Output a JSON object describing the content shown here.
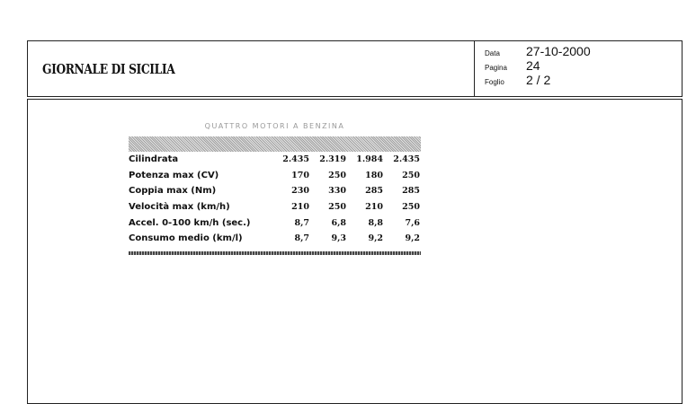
{
  "header": {
    "publication": "GIORNALE DI SICILIA"
  },
  "meta": [
    {
      "label": "Data",
      "value": "27-10-2000"
    },
    {
      "label": "Pagina",
      "value": "24"
    },
    {
      "label": "Foglio",
      "value": "2 / 2"
    }
  ],
  "table": {
    "title": "Quattro motori a benzina",
    "rows": [
      {
        "label": "Cilindrata",
        "values": [
          "2.435",
          "2.319",
          "1.984",
          "2.435"
        ]
      },
      {
        "label": "Potenza max (CV)",
        "values": [
          "170",
          "250",
          "180",
          "250"
        ]
      },
      {
        "label": "Coppia max (Nm)",
        "values": [
          "230",
          "330",
          "285",
          "285"
        ]
      },
      {
        "label": "Velocità max (km/h)",
        "values": [
          "210",
          "250",
          "210",
          "250"
        ]
      },
      {
        "label": "Accel. 0-100 km/h (sec.)",
        "values": [
          "8,7",
          "6,8",
          "8,8",
          "7,6"
        ]
      },
      {
        "label": "Consumo medio (km/l)",
        "values": [
          "8,7",
          "9,3",
          "9,2",
          "9,2"
        ]
      }
    ]
  }
}
